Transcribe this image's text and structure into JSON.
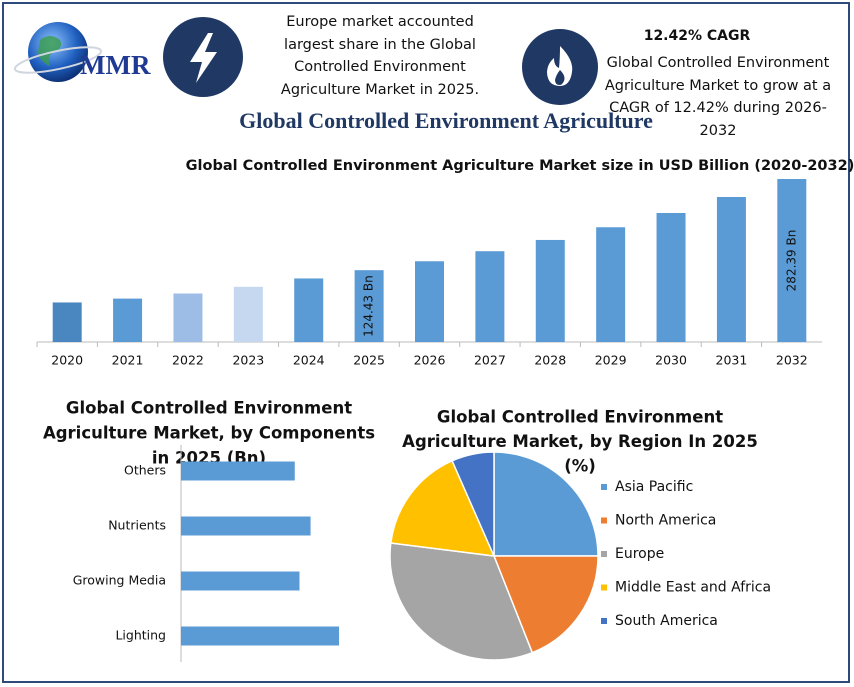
{
  "header": {
    "logo": "MMR",
    "note_left": [
      "Europe market accounted",
      "largest share in the Global",
      "Controlled Environment",
      "Agriculture Market in 2025."
    ],
    "cagr_title": "12.42% CAGR",
    "note_right": [
      "Global Controlled Environment",
      "Agriculture Market to grow at a",
      "CAGR of 12.42% during 2026-",
      "2032"
    ],
    "title": "Global Controlled Environment Agriculture"
  },
  "chart_data": [
    {
      "type": "bar",
      "orientation": "vertical",
      "title": "Global Controlled Environment Agriculture Market size in USD Billion (2020-2032)",
      "categories": [
        "2020",
        "2021",
        "2022",
        "2023",
        "2024",
        "2025",
        "2026",
        "2027",
        "2028",
        "2029",
        "2030",
        "2031",
        "2032"
      ],
      "values": [
        68.5,
        75.2,
        84.0,
        95.6,
        110.1,
        124.43,
        139.9,
        157.3,
        176.8,
        198.8,
        223.5,
        251.2,
        282.39
      ],
      "value_labels": [
        null,
        null,
        null,
        null,
        null,
        "124.43 Bn",
        null,
        null,
        null,
        null,
        null,
        null,
        "282.39 Bn"
      ],
      "colors": [
        "#4a86c0",
        "#5b9bd5",
        "#9dbde6",
        "#c5d8ef",
        "#5b9bd5",
        "#5b9bd5",
        "#5b9bd5",
        "#5b9bd5",
        "#5b9bd5",
        "#5b9bd5",
        "#5b9bd5",
        "#5b9bd5",
        "#5b9bd5"
      ]
    },
    {
      "type": "bar",
      "orientation": "horizontal",
      "title": [
        "Global Controlled Environment",
        "Agriculture Market, by Components",
        "in 2025 (Bn)"
      ],
      "categories": [
        "Others",
        "Nutrients",
        "Growing Media",
        "Lighting"
      ],
      "values": [
        7.2,
        8.2,
        7.5,
        10.0
      ],
      "color": "#5b9bd5"
    },
    {
      "type": "pie",
      "title": [
        "Global Controlled Environment",
        "Agriculture Market, by Region In 2025",
        "(%)"
      ],
      "categories": [
        "Asia Pacific",
        "North America",
        "Europe",
        "Middle East and Africa",
        "South America"
      ],
      "values": [
        25,
        19,
        33,
        16.4,
        6.6
      ],
      "colors": [
        "#5b9bd5",
        "#ed7d31",
        "#a5a5a5",
        "#ffc000",
        "#4472c4"
      ],
      "legend": "right"
    }
  ]
}
